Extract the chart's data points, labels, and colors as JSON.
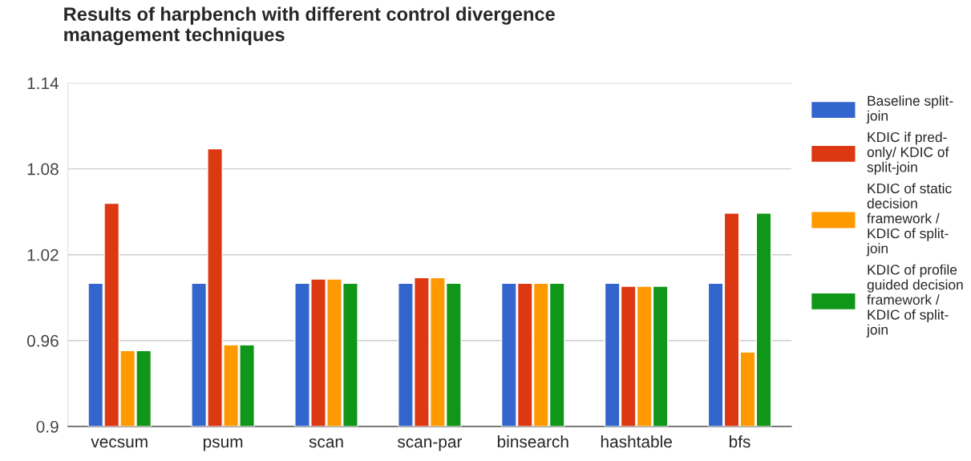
{
  "chart_data": {
    "type": "bar",
    "title": "Results of harpbench with different control divergence\nmanagement techniques",
    "categories": [
      "vecsum",
      "psum",
      "scan",
      "scan-par",
      "binsearch",
      "hashtable",
      "bfs"
    ],
    "series": [
      {
        "name": "Baseline split-\njoin",
        "color": "#3366cc",
        "values": [
          1.0,
          1.0,
          1.0,
          1.0,
          1.0,
          1.0,
          1.0
        ]
      },
      {
        "name": "KDIC if pred-\nonly/ KDIC of\nsplit-join",
        "color": "#dc3912",
        "values": [
          1.056,
          1.094,
          1.003,
          1.004,
          1.0,
          0.998,
          1.049
        ]
      },
      {
        "name": "KDIC of static\ndecision\nframework /\nKDIC of split-\njoin",
        "color": "#ff9900",
        "values": [
          0.953,
          0.957,
          1.003,
          1.004,
          1.0,
          0.998,
          0.952
        ]
      },
      {
        "name": "KDIC of profile\nguided decision\nframework /\nKDIC of split-\njoin",
        "color": "#109618",
        "values": [
          0.953,
          0.957,
          1.0,
          1.0,
          1.0,
          0.998,
          1.049
        ]
      }
    ],
    "ylim": [
      0.9,
      1.14
    ],
    "yticks": [
      1.14,
      1.08,
      1.02,
      0.96,
      0.9
    ],
    "grid": "y",
    "legend": "right"
  }
}
